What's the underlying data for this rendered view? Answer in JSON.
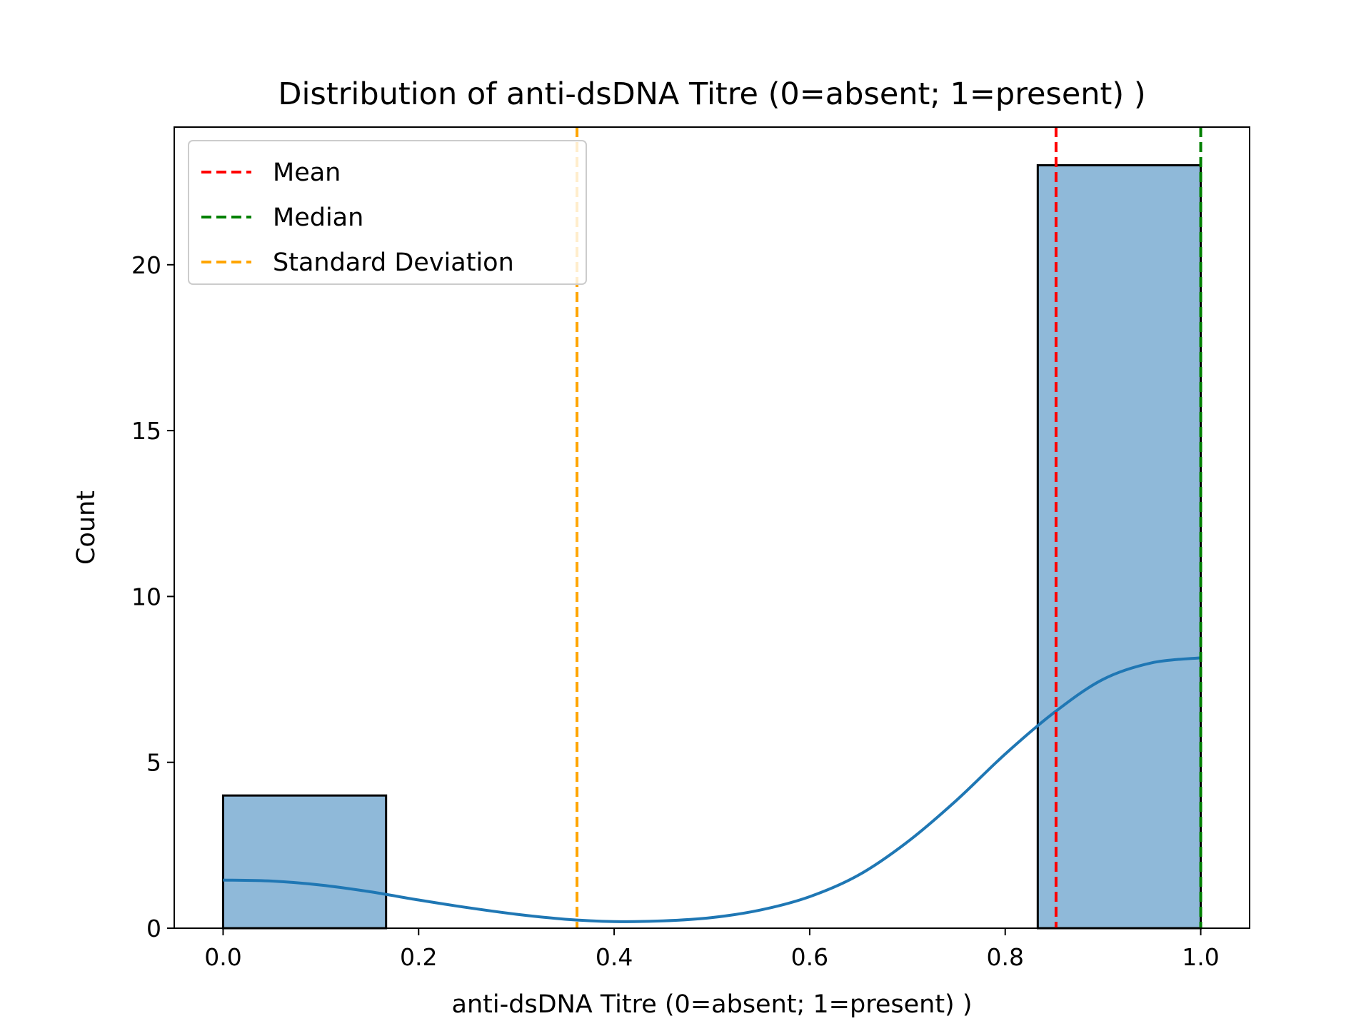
{
  "chart_data": {
    "type": "bar",
    "title": "Distribution of anti-dsDNA Titre  (0=absent; 1=present) )",
    "xlabel": "anti-dsDNA Titre  (0=absent; 1=present) )",
    "ylabel": "Count",
    "xlim": [
      -0.05,
      1.05
    ],
    "ylim": [
      0,
      24.15
    ],
    "x_ticks": [
      0.0,
      0.2,
      0.4,
      0.6,
      0.8,
      1.0
    ],
    "x_tick_labels": [
      "0.0",
      "0.2",
      "0.4",
      "0.6",
      "0.8",
      "1.0"
    ],
    "y_ticks": [
      0,
      5,
      10,
      15,
      20
    ],
    "y_tick_labels": [
      "0",
      "5",
      "10",
      "15",
      "20"
    ],
    "grid": false,
    "bins": [
      {
        "x0": 0.0,
        "x1": 0.1667,
        "count": 4
      },
      {
        "x0": 0.8333,
        "x1": 1.0,
        "count": 23
      }
    ],
    "bar_color": "#8fb9d9",
    "bar_edge_color": "#000000",
    "kde": {
      "color": "#1f77b4",
      "x": [
        0.0,
        0.05,
        0.1,
        0.15,
        0.2,
        0.25,
        0.3,
        0.35,
        0.4,
        0.45,
        0.5,
        0.55,
        0.6,
        0.65,
        0.7,
        0.75,
        0.8,
        0.85,
        0.9,
        0.95,
        1.0
      ],
      "y": [
        1.45,
        1.42,
        1.3,
        1.1,
        0.85,
        0.62,
        0.42,
        0.27,
        0.2,
        0.22,
        0.32,
        0.55,
        0.95,
        1.6,
        2.6,
        3.85,
        5.25,
        6.5,
        7.5,
        8.0,
        8.15
      ]
    },
    "vlines": [
      {
        "name": "Mean",
        "x": 0.852,
        "color": "#ff0000"
      },
      {
        "name": "Median",
        "x": 1.0,
        "color": "#008000"
      },
      {
        "name": "Standard Deviation",
        "x": 0.362,
        "color": "#ffa500"
      }
    ],
    "legend": {
      "placement": "upper-left",
      "entries": [
        {
          "label": "Mean",
          "color": "#ff0000"
        },
        {
          "label": "Median",
          "color": "#008000"
        },
        {
          "label": "Standard Deviation",
          "color": "#ffa500"
        }
      ]
    }
  }
}
